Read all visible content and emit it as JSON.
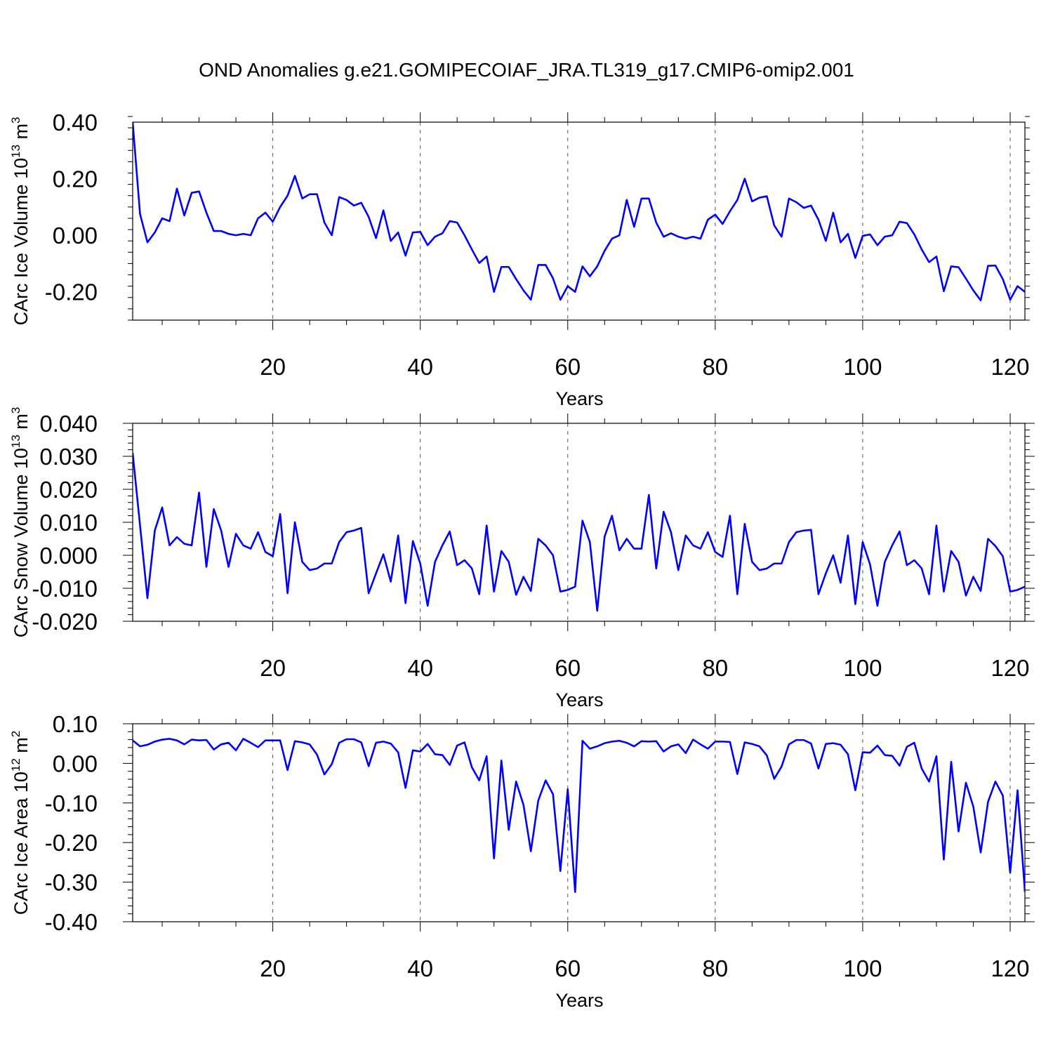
{
  "title": "OND Anomalies g.e21.GOMIPECOIAF_JRA.TL319_g17.CMIP6-omip2.001",
  "chart_data": [
    {
      "type": "line",
      "ylabel": "CArc Ice Volume 10",
      "ylabel_exp": "13",
      "ylabel_unit": " m",
      "ylabel_unit_exp": "3",
      "xlabel": "Years",
      "xlim": [
        1,
        122
      ],
      "ylim": [
        -0.3,
        0.4
      ],
      "yticks": [
        -0.2,
        0.0,
        0.2,
        0.4
      ],
      "ytick_labels": [
        "-0.20",
        "0.00",
        "0.20",
        "0.40"
      ],
      "xticks": [
        20,
        40,
        60,
        80,
        100,
        120
      ],
      "xtick_labels": [
        "20",
        "40",
        "60",
        "80",
        "100",
        "120"
      ],
      "grid": "vertical dashed at x ticks",
      "color": "#0000ff",
      "x_start": 1,
      "values": [
        0.4,
        0.075,
        -0.025,
        0.01,
        0.06,
        0.05,
        0.165,
        0.07,
        0.15,
        0.155,
        0.08,
        0.015,
        0.015,
        0.005,
        0.0,
        0.005,
        0.0,
        0.06,
        0.08,
        0.048,
        0.1,
        0.14,
        0.21,
        0.13,
        0.145,
        0.145,
        0.045,
        0.0,
        0.135,
        0.125,
        0.105,
        0.115,
        0.065,
        -0.01,
        0.088,
        -0.02,
        0.01,
        -0.072,
        0.01,
        0.012,
        -0.035,
        -0.005,
        0.007,
        0.05,
        0.045,
        0.0,
        -0.05,
        -0.098,
        -0.075,
        -0.2,
        -0.112,
        -0.112,
        -0.155,
        -0.195,
        -0.228,
        -0.105,
        -0.105,
        -0.152,
        -0.228,
        -0.18,
        -0.2,
        -0.11,
        -0.145,
        -0.11,
        -0.055,
        -0.012,
        0.0,
        0.125,
        0.03,
        0.13,
        0.13,
        0.045,
        -0.005,
        0.007,
        -0.005,
        -0.012,
        -0.005,
        -0.012,
        0.055,
        0.073,
        0.04,
        0.085,
        0.125,
        0.2,
        0.12,
        0.133,
        0.138,
        0.035,
        -0.005,
        0.13,
        0.117,
        0.097,
        0.105,
        0.055,
        -0.02,
        0.08,
        -0.025,
        0.005,
        -0.08,
        -0.002,
        0.003,
        -0.035,
        -0.005,
        0.0,
        0.048,
        0.043,
        0.003,
        -0.05,
        -0.095,
        -0.075,
        -0.198,
        -0.11,
        -0.113,
        -0.153,
        -0.195,
        -0.23,
        -0.108,
        -0.107,
        -0.155,
        -0.228,
        -0.18,
        -0.2
      ]
    },
    {
      "type": "line",
      "ylabel": "CArc Snow Volume 10",
      "ylabel_exp": "13",
      "ylabel_unit": " m",
      "ylabel_unit_exp": "3",
      "xlabel": "Years",
      "xlim": [
        1,
        122
      ],
      "ylim": [
        -0.02,
        0.04
      ],
      "yticks": [
        -0.02,
        -0.01,
        0.0,
        0.01,
        0.02,
        0.03,
        0.04
      ],
      "ytick_labels": [
        "-0.020",
        "-0.010",
        "0.000",
        "0.010",
        "0.020",
        "0.030",
        "0.040"
      ],
      "xticks": [
        20,
        40,
        60,
        80,
        100,
        120
      ],
      "xtick_labels": [
        "20",
        "40",
        "60",
        "80",
        "100",
        "120"
      ],
      "grid": "vertical dashed at x ticks",
      "color": "#0000ff",
      "x_start": 1,
      "values": [
        0.031,
        0.009,
        -0.013,
        0.0075,
        0.0145,
        0.003,
        0.0055,
        0.0035,
        0.003,
        0.019,
        -0.0035,
        0.014,
        0.0075,
        -0.0035,
        0.0065,
        0.003,
        0.002,
        0.007,
        0.001,
        -0.0003,
        0.0125,
        -0.0115,
        0.01,
        -0.002,
        -0.0045,
        -0.004,
        -0.0025,
        -0.0025,
        0.004,
        0.007,
        0.0075,
        0.0083,
        -0.0115,
        -0.0055,
        0.0003,
        -0.008,
        0.006,
        -0.0145,
        0.0043,
        -0.0025,
        -0.0153,
        -0.002,
        0.003,
        0.0072,
        -0.003,
        -0.0015,
        -0.004,
        -0.0118,
        0.009,
        -0.011,
        0.0013,
        -0.002,
        -0.012,
        -0.0065,
        -0.0108,
        0.005,
        0.003,
        0.0,
        -0.011,
        -0.0105,
        -0.0095,
        0.0105,
        0.004,
        -0.0168,
        0.0057,
        0.012,
        0.0015,
        0.005,
        0.002,
        0.002,
        0.0183,
        -0.004,
        0.0132,
        0.007,
        -0.0045,
        0.006,
        0.003,
        0.002,
        0.007,
        0.001,
        -0.0005,
        0.012,
        -0.0118,
        0.0095,
        -0.002,
        -0.0045,
        -0.004,
        -0.0025,
        -0.0025,
        0.004,
        0.007,
        0.0075,
        0.0077,
        -0.0118,
        -0.0055,
        0.0,
        -0.0083,
        0.006,
        -0.0148,
        0.004,
        -0.0028,
        -0.0153,
        -0.002,
        0.003,
        0.0072,
        -0.003,
        -0.0015,
        -0.004,
        -0.0118,
        0.009,
        -0.011,
        0.0013,
        -0.002,
        -0.0122,
        -0.0065,
        -0.0108,
        0.005,
        0.0028,
        -0.0003,
        -0.011,
        -0.0105,
        -0.0095
      ]
    },
    {
      "type": "line",
      "ylabel": "CArc Ice Area 10",
      "ylabel_exp": "12",
      "ylabel_unit": " m",
      "ylabel_unit_exp": "2",
      "xlabel": "Years",
      "xlim": [
        1,
        122
      ],
      "ylim": [
        -0.4,
        0.1
      ],
      "yticks": [
        -0.4,
        -0.3,
        -0.2,
        -0.1,
        0.0,
        0.1
      ],
      "ytick_labels": [
        "-0.40",
        "-0.30",
        "-0.20",
        "-0.10",
        "0.00",
        "0.10"
      ],
      "xticks": [
        20,
        40,
        60,
        80,
        100,
        120
      ],
      "xtick_labels": [
        "20",
        "40",
        "60",
        "80",
        "100",
        "120"
      ],
      "grid": "vertical dashed at x ticks",
      "color": "#0000ff",
      "x_start": 1,
      "values": [
        0.058,
        0.043,
        0.047,
        0.055,
        0.06,
        0.062,
        0.058,
        0.048,
        0.06,
        0.058,
        0.059,
        0.035,
        0.048,
        0.052,
        0.033,
        0.062,
        0.052,
        0.041,
        0.058,
        0.058,
        0.058,
        -0.017,
        0.056,
        0.053,
        0.048,
        0.022,
        -0.028,
        -0.002,
        0.052,
        0.061,
        0.061,
        0.053,
        -0.007,
        0.052,
        0.055,
        0.05,
        0.028,
        -0.062,
        0.033,
        0.03,
        0.049,
        0.023,
        0.021,
        -0.004,
        0.045,
        0.053,
        -0.01,
        -0.043,
        0.018,
        -0.24,
        0.007,
        -0.168,
        -0.046,
        -0.105,
        -0.222,
        -0.094,
        -0.043,
        -0.078,
        -0.272,
        -0.065,
        -0.325,
        0.057,
        0.037,
        0.043,
        0.051,
        0.055,
        0.057,
        0.052,
        0.043,
        0.056,
        0.055,
        0.056,
        0.03,
        0.043,
        0.048,
        0.026,
        0.06,
        0.048,
        0.037,
        0.055,
        0.055,
        0.054,
        -0.027,
        0.053,
        0.049,
        0.043,
        0.02,
        -0.039,
        -0.008,
        0.048,
        0.059,
        0.059,
        0.05,
        -0.013,
        0.049,
        0.051,
        0.047,
        0.023,
        -0.068,
        0.028,
        0.027,
        0.045,
        0.021,
        0.019,
        -0.006,
        0.042,
        0.052,
        -0.013,
        -0.046,
        0.018,
        -0.243,
        0.004,
        -0.172,
        -0.049,
        -0.109,
        -0.225,
        -0.097,
        -0.046,
        -0.081,
        -0.276,
        -0.068,
        -0.325
      ]
    }
  ]
}
